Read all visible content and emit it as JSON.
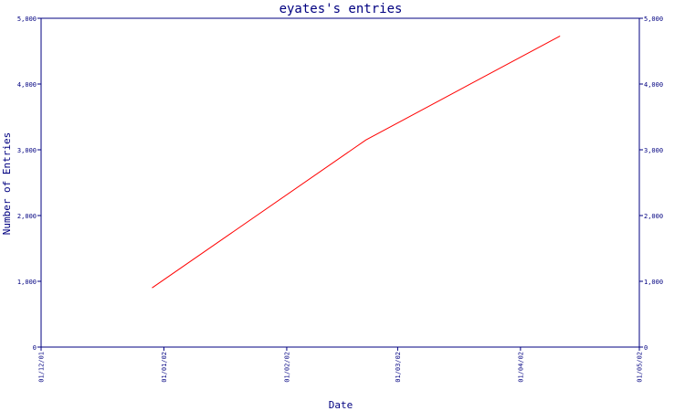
{
  "chart_data": {
    "type": "line",
    "title": "eyates's entries",
    "xlabel": "Date",
    "ylabel": "Number of Entries",
    "x_tick_labels": [
      "01/12/01",
      "01/01/02",
      "01/02/02",
      "01/03/02",
      "01/04/02",
      "01/05/02"
    ],
    "x_tick_dates": [
      "2001-12-01",
      "2002-01-01",
      "2002-02-01",
      "2002-03-01",
      "2002-04-01",
      "2002-05-01"
    ],
    "xlim": [
      "2001-12-01",
      "2002-05-01"
    ],
    "y_ticks": [
      0,
      1000,
      2000,
      3000,
      4000,
      5000
    ],
    "y_tick_labels": [
      "0",
      "1,000",
      "2,000",
      "3,000",
      "4,000",
      "5,000"
    ],
    "ylim": [
      0,
      5000
    ],
    "right_axis_mirrored": true,
    "grid": false,
    "series": [
      {
        "color": "#ff0000",
        "x": [
          "2001-12-29",
          "2002-02-21",
          "2002-04-11"
        ],
        "y": [
          900,
          3150,
          4730
        ]
      }
    ]
  },
  "colors": {
    "axis": "#000080",
    "text": "#000080",
    "line": "#ff0000",
    "background": "#ffffff"
  }
}
